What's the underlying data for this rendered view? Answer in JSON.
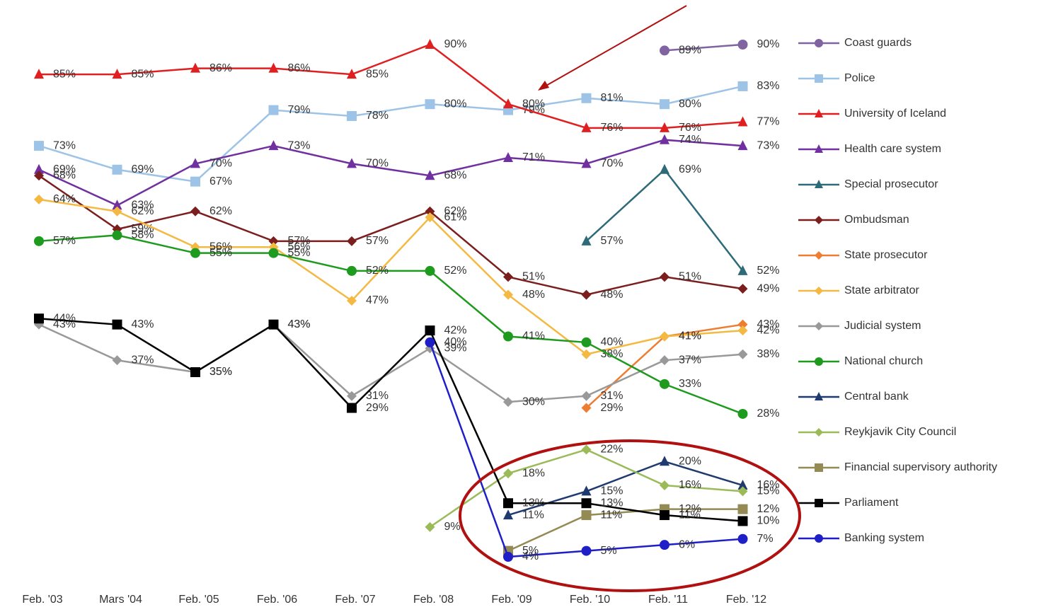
{
  "chart_data": {
    "type": "line",
    "categories": [
      "Feb. '03",
      "Mars '04",
      "Feb. '05",
      "Feb. '06",
      "Feb. '07",
      "Feb. '08",
      "Feb. '09",
      "Feb. '10",
      "Feb. '11",
      "Feb. '12"
    ],
    "series": [
      {
        "name": "Coast guards",
        "color": "#8064a2",
        "marker": "circle",
        "values": [
          null,
          null,
          null,
          null,
          null,
          null,
          null,
          null,
          89,
          90
        ],
        "value_labels": [
          null,
          null,
          null,
          null,
          null,
          null,
          null,
          null,
          "89%",
          "90%"
        ]
      },
      {
        "name": "Police",
        "color": "#9dc3e6",
        "marker": "square",
        "values": [
          73,
          69,
          67,
          79,
          78,
          80,
          79,
          81,
          80,
          83
        ],
        "value_labels": [
          "73%",
          "69%",
          "67%",
          "79%",
          "78%",
          "80%",
          "79%",
          "81%",
          "80%",
          "83%"
        ]
      },
      {
        "name": "University of Iceland",
        "color": "#e02020",
        "marker": "triangle",
        "values": [
          85,
          85,
          86,
          86,
          85,
          90,
          80,
          76,
          76,
          77
        ],
        "value_labels": [
          "85%",
          "85%",
          "86%",
          "86%",
          "85%",
          "90%",
          "80%",
          "76%",
          "76%",
          "77%"
        ]
      },
      {
        "name": "Health care system",
        "color": "#7030a0",
        "marker": "triangle",
        "values": [
          69,
          63,
          70,
          73,
          70,
          68,
          71,
          70,
          74,
          73
        ],
        "value_labels": [
          "69%",
          "63%",
          "70%",
          "73%",
          "70%",
          "68%",
          "71%",
          "70%",
          "74%",
          "73%"
        ]
      },
      {
        "name": "Special prosecutor",
        "color": "#2e6b78",
        "marker": "triangle",
        "values": [
          null,
          null,
          null,
          null,
          null,
          null,
          null,
          57,
          69,
          52
        ],
        "value_labels": [
          null,
          null,
          null,
          null,
          null,
          null,
          null,
          "57%",
          "69%",
          "52%"
        ]
      },
      {
        "name": "Ombudsman",
        "color": "#7b1e1e",
        "marker": "diamond",
        "values": [
          68,
          59,
          62,
          57,
          57,
          62,
          51,
          48,
          51,
          49
        ],
        "value_labels": [
          "68%",
          "59%",
          "62%",
          "57%",
          "57%",
          "62%",
          "51%",
          "48%",
          "51%",
          "49%"
        ]
      },
      {
        "name": "State prosecutor",
        "color": "#ed7d31",
        "marker": "diamond",
        "values": [
          null,
          null,
          null,
          null,
          null,
          null,
          null,
          29,
          41,
          43
        ],
        "value_labels": [
          null,
          null,
          null,
          null,
          null,
          null,
          null,
          "29%",
          "41%",
          "43%"
        ]
      },
      {
        "name": "State arbitrator",
        "color": "#f4b942",
        "marker": "diamond",
        "values": [
          64,
          62,
          56,
          56,
          47,
          61,
          48,
          38,
          41,
          42
        ],
        "value_labels": [
          "64%",
          "62%",
          "56%",
          "56%",
          "47%",
          "61%",
          "48%",
          "38%",
          "41%",
          "42%"
        ]
      },
      {
        "name": "Judicial system",
        "color": "#999999",
        "marker": "diamond",
        "values": [
          43,
          37,
          35,
          43,
          31,
          39,
          30,
          31,
          37,
          38
        ],
        "value_labels": [
          "43%",
          "37%",
          "35%",
          "43%",
          "31%",
          "39%",
          "30%",
          "31%",
          "37%",
          "38%"
        ]
      },
      {
        "name": "National church",
        "color": "#1e9b1e",
        "marker": "circle",
        "values": [
          57,
          58,
          55,
          55,
          52,
          52,
          41,
          40,
          33,
          28
        ],
        "value_labels": [
          "57%",
          "58%",
          "55%",
          "55%",
          "52%",
          "52%",
          "41%",
          "40%",
          "33%",
          "28%"
        ]
      },
      {
        "name": "Central bank",
        "color": "#1f3a6e",
        "marker": "triangle",
        "values": [
          null,
          null,
          null,
          null,
          null,
          null,
          11,
          15,
          20,
          16
        ],
        "value_labels": [
          null,
          null,
          null,
          null,
          null,
          null,
          "11%",
          "15%",
          "20%",
          "16%"
        ]
      },
      {
        "name": "Reykjavik City Council",
        "color": "#9bbb59",
        "marker": "diamond",
        "values": [
          null,
          null,
          null,
          null,
          null,
          9,
          18,
          22,
          16,
          15
        ],
        "value_labels": [
          null,
          null,
          null,
          null,
          null,
          "9%",
          "18%",
          "22%",
          "16%",
          "15%"
        ]
      },
      {
        "name": "Financial supervisory authority",
        "color": "#948a54",
        "marker": "square",
        "values": [
          null,
          null,
          null,
          null,
          null,
          null,
          5,
          11,
          12,
          12
        ],
        "value_labels": [
          null,
          null,
          null,
          null,
          null,
          null,
          "5%",
          "11%",
          "12%",
          "12%"
        ]
      },
      {
        "name": "Parliament",
        "color": "#000000",
        "marker": "square",
        "values": [
          44,
          43,
          35,
          43,
          29,
          42,
          13,
          13,
          11,
          10
        ],
        "value_labels": [
          "44%",
          "43%",
          "35%",
          "43%",
          "29%",
          "42%",
          "13%",
          "13%",
          "11%",
          "10%"
        ]
      },
      {
        "name": "Banking system",
        "color": "#1f1fc8",
        "marker": "circle",
        "values": [
          null,
          null,
          null,
          null,
          null,
          40,
          4,
          5,
          6,
          7
        ],
        "value_labels": [
          null,
          null,
          null,
          null,
          null,
          "40%",
          "4%",
          "5%",
          "6%",
          "7%"
        ]
      }
    ]
  }
}
